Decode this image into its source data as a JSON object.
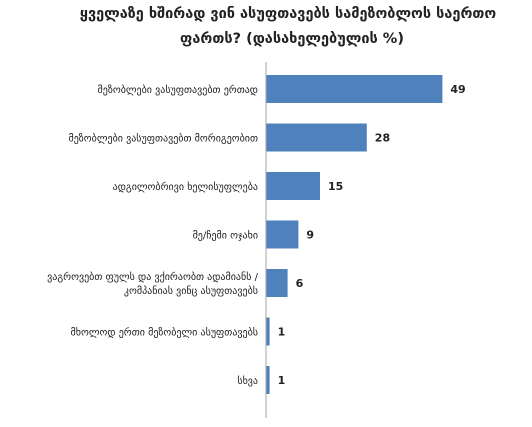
{
  "chart_data": {
    "type": "bar",
    "orientation": "horizontal",
    "title_lines": [
      "ყველაზე ხშირად ვინ ასუფთავებს სამეზობლოს საერთო",
      "ფართს? (დასახელებულის %)"
    ],
    "categories": [
      [
        "მეზობლები ვასუფთავებთ ერთად"
      ],
      [
        "მეზობლები ვასუფთავებთ მორიგეობით"
      ],
      [
        "ადგილობრივი ხელისუფლება"
      ],
      [
        "მე/ჩემი ოჯახი"
      ],
      [
        "ვაგროვებთ ფულს და ვქირაობთ ადამიანს /",
        "კომპანიას ვინც ასუფთავებს"
      ],
      [
        "მხოლოდ ერთი მეზობელი ასუფთავებს"
      ],
      [
        "სხვა"
      ]
    ],
    "values": [
      49,
      28,
      15,
      9,
      6,
      1,
      1
    ],
    "data_labels": [
      "49",
      "28",
      "15",
      "9",
      "6",
      "1",
      "1"
    ],
    "xlim": [
      0,
      50
    ],
    "grid": false,
    "legend": "none",
    "bar_color": "#4F81BD",
    "axis_color": "#A6A6A6",
    "text_color": "#222222"
  }
}
